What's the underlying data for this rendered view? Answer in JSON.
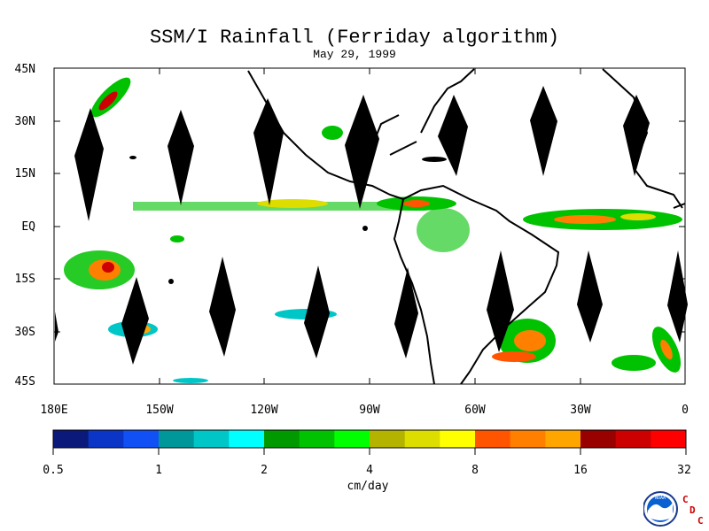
{
  "map": {
    "title": "SSM/I Rainfall (Ferriday algorithm)",
    "date": "May 29, 1999",
    "lat_labels": [
      "45N",
      "30N",
      "15N",
      "EQ",
      "15S",
      "30S",
      "45S"
    ],
    "lon_labels": [
      "180E",
      "150W",
      "120W",
      "90W",
      "60W",
      "30W",
      "0"
    ]
  },
  "colorbar": {
    "units": "cm/day",
    "tick_labels": [
      "0.5",
      "1",
      "2",
      "4",
      "8",
      "16",
      "32"
    ],
    "colors": [
      "#0b1a7a",
      "#0a35c6",
      "#1150f5",
      "#00979a",
      "#00c6c8",
      "#00ffff",
      "#009900",
      "#00c200",
      "#00ff00",
      "#b3b300",
      "#dddd00",
      "#ffff00",
      "#ff5500",
      "#ff8000",
      "#ffa500",
      "#990000",
      "#cc0000",
      "#ff0000"
    ]
  },
  "logo": {
    "name": "noaa-logo",
    "text": "NOAA",
    "cdc_letters": [
      "C",
      "D",
      "C"
    ]
  }
}
